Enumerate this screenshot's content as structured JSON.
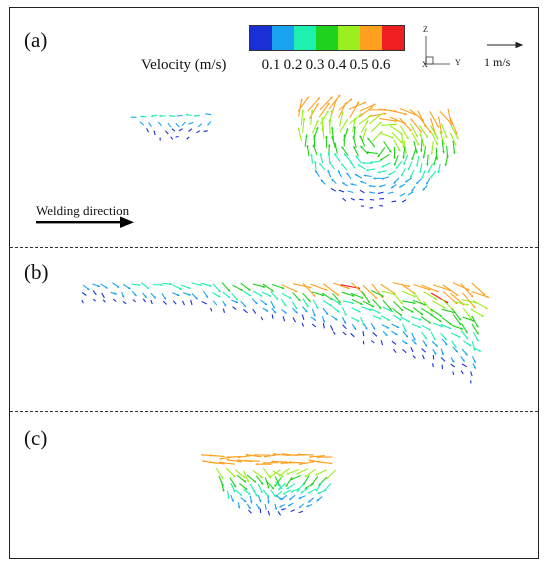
{
  "panels": {
    "a": {
      "label": "(a)"
    },
    "b": {
      "label": "(b)"
    },
    "c": {
      "label": "(c)"
    }
  },
  "legend": {
    "title": "Velocity (m/s)",
    "ticks": [
      "0.1",
      "0.2",
      "0.3",
      "0.4",
      "0.5",
      "0.6"
    ],
    "colors": [
      "#1a2fd6",
      "#1aa3f0",
      "#1ef0b0",
      "#1ed21e",
      "#9af01e",
      "#ffa01e",
      "#f01e1e"
    ]
  },
  "axes_triad": {
    "z": "Z",
    "y": "Y",
    "x": "X"
  },
  "scale_arrow": {
    "label": "1 m/s"
  },
  "welding": {
    "label": "Welding direction"
  }
}
